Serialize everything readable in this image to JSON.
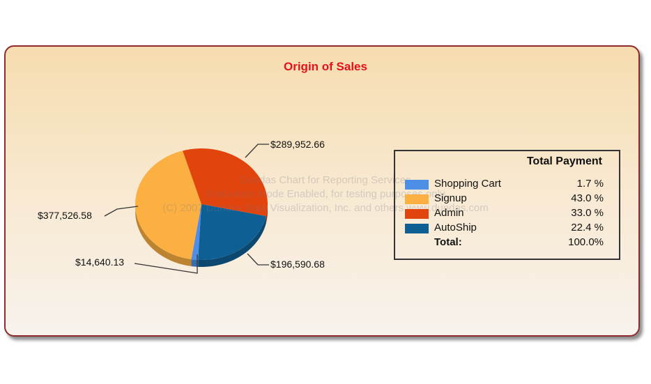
{
  "chart_data": {
    "type": "pie",
    "title": "Origin of Sales",
    "categories": [
      "Shopping Cart",
      "Signup",
      "Admin",
      "AutoShip"
    ],
    "values": [
      14640.13,
      377526.58,
      289952.66,
      196590.68
    ],
    "data_labels": [
      "$14,640.13",
      "$377,526.58",
      "$289,952.66",
      "$196,590.68"
    ],
    "colors": [
      "#4d8fe6",
      "#fbb041",
      "#e2440d",
      "#0e5f93"
    ],
    "legend": {
      "title": "Total Payment",
      "placement": "right",
      "entries": [
        {
          "name": "Shopping Cart",
          "value": "1.7 %"
        },
        {
          "name": "Signup",
          "value": "43.0 %"
        },
        {
          "name": "Admin",
          "value": "33.0 %"
        },
        {
          "name": "AutoShip",
          "value": "22.4 %"
        }
      ],
      "total_label": "Total:",
      "total_value": "100.0%"
    }
  },
  "watermark": [
    "Dundas Chart for Reporting Services",
    "Evaluation Mode Enabled, for testing purposes only",
    "(C) 2007 Dundas Data Visualization, Inc. and others www.dundas.com"
  ]
}
